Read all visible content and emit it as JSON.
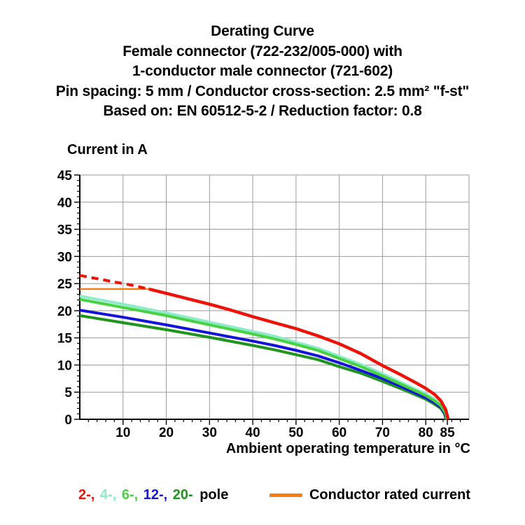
{
  "header": {
    "title": "Derating Curve",
    "subtitle_lines": [
      "Female connector (722-232/005-000) with",
      "1-conductor male connector (721-602)",
      "Pin spacing: 5 mm / Conductor cross-section: 2.5 mm² \"f-st\"",
      "Based on: EN 60512-5-2 / Reduction factor: 0.8"
    ]
  },
  "chart_data": {
    "type": "line",
    "title": "Derating Curve",
    "ylabel": "Current in A",
    "xlabel": "Ambient operating temperature in °C",
    "xlim": [
      0,
      90
    ],
    "ylim": [
      0,
      45
    ],
    "grid": true,
    "grid_color": "#9b9b9b",
    "axis_color": "#000000",
    "x_gridlines": [
      10,
      20,
      30,
      40,
      50,
      60,
      70,
      80,
      90
    ],
    "x_tick_labels": [
      10,
      20,
      30,
      40,
      50,
      60,
      70,
      80,
      85
    ],
    "x_minor_tick_step": 2,
    "y_ticks": [
      0,
      5,
      10,
      15,
      20,
      25,
      30,
      35,
      40,
      45
    ],
    "y_minor_tick_step": 1,
    "series": [
      {
        "name": "conductor-rated-current",
        "color": "#f97d12",
        "width": 2.5,
        "dash": null,
        "points": [
          [
            0,
            24
          ],
          [
            16.5,
            24
          ]
        ]
      },
      {
        "name": "20-pole",
        "color": "#1f941f",
        "width": 4,
        "dash": null,
        "points": [
          [
            0,
            19.1
          ],
          [
            10,
            17.8
          ],
          [
            20,
            16.5
          ],
          [
            30,
            15.1
          ],
          [
            40,
            13.6
          ],
          [
            45,
            12.8
          ],
          [
            50,
            11.9
          ],
          [
            55,
            11.0
          ],
          [
            60,
            9.7
          ],
          [
            65,
            8.5
          ],
          [
            70,
            7.0
          ],
          [
            75,
            5.4
          ],
          [
            78,
            4.4
          ],
          [
            80,
            3.7
          ],
          [
            82,
            2.8
          ],
          [
            83.5,
            2.0
          ],
          [
            84.3,
            1.0
          ],
          [
            84.7,
            0
          ]
        ]
      },
      {
        "name": "12-pole",
        "color": "#1414d8",
        "width": 4,
        "dash": null,
        "points": [
          [
            0,
            20.1
          ],
          [
            10,
            18.8
          ],
          [
            20,
            17.4
          ],
          [
            30,
            15.9
          ],
          [
            40,
            14.4
          ],
          [
            45,
            13.6
          ],
          [
            50,
            12.7
          ],
          [
            55,
            11.7
          ],
          [
            60,
            10.4
          ],
          [
            65,
            9.0
          ],
          [
            70,
            7.5
          ],
          [
            75,
            5.8
          ],
          [
            78,
            4.7
          ],
          [
            80,
            4.0
          ],
          [
            82,
            3.1
          ],
          [
            83.5,
            2.2
          ],
          [
            84.4,
            1.1
          ],
          [
            84.8,
            0
          ]
        ]
      },
      {
        "name": "4-pole",
        "color": "#8cecc8",
        "width": 4,
        "dash": null,
        "points": [
          [
            0,
            22.7
          ],
          [
            10,
            21.2
          ],
          [
            20,
            19.6
          ],
          [
            30,
            17.9
          ],
          [
            40,
            16.2
          ],
          [
            45,
            15.3
          ],
          [
            50,
            14.2
          ],
          [
            55,
            13.1
          ],
          [
            60,
            11.6
          ],
          [
            65,
            10.1
          ],
          [
            70,
            8.4
          ],
          [
            75,
            6.5
          ],
          [
            78,
            5.4
          ],
          [
            80,
            4.7
          ],
          [
            82,
            3.7
          ],
          [
            83.5,
            2.7
          ],
          [
            84.5,
            1.4
          ],
          [
            84.9,
            0
          ]
        ]
      },
      {
        "name": "6-pole",
        "color": "#48d141",
        "width": 4,
        "dash": null,
        "points": [
          [
            0,
            22.1
          ],
          [
            10,
            20.6
          ],
          [
            20,
            19.1
          ],
          [
            30,
            17.4
          ],
          [
            40,
            15.7
          ],
          [
            45,
            14.8
          ],
          [
            50,
            13.8
          ],
          [
            55,
            12.7
          ],
          [
            60,
            11.2
          ],
          [
            65,
            9.7
          ],
          [
            70,
            8.0
          ],
          [
            75,
            6.2
          ],
          [
            78,
            5.1
          ],
          [
            80,
            4.4
          ],
          [
            82,
            3.4
          ],
          [
            83.5,
            2.5
          ],
          [
            84.5,
            1.2
          ],
          [
            85,
            0
          ]
        ]
      },
      {
        "name": "2-pole-extrapolated",
        "color": "#ed1309",
        "width": 4,
        "dash": "10 7",
        "points": [
          [
            0,
            26.5
          ],
          [
            4,
            25.9
          ],
          [
            8,
            25.3
          ],
          [
            12,
            24.7
          ],
          [
            16,
            24
          ]
        ]
      },
      {
        "name": "2-pole",
        "color": "#ed1309",
        "width": 4.5,
        "dash": null,
        "points": [
          [
            16,
            24
          ],
          [
            20,
            23.2
          ],
          [
            25,
            22.2
          ],
          [
            30,
            21.2
          ],
          [
            35,
            20.1
          ],
          [
            40,
            18.9
          ],
          [
            45,
            17.8
          ],
          [
            50,
            16.7
          ],
          [
            55,
            15.4
          ],
          [
            60,
            13.9
          ],
          [
            65,
            12.1
          ],
          [
            70,
            9.9
          ],
          [
            74,
            8.3
          ],
          [
            78,
            6.6
          ],
          [
            80,
            5.7
          ],
          [
            82,
            4.6
          ],
          [
            83.5,
            3.4
          ],
          [
            84.6,
            1.8
          ],
          [
            85.2,
            0
          ]
        ]
      }
    ]
  },
  "legend": {
    "poles": [
      {
        "label": "2-,",
        "color": "#ed1309"
      },
      {
        "label": "4-,",
        "color": "#8cecc8"
      },
      {
        "label": "6-,",
        "color": "#48d141"
      },
      {
        "label": "12-,",
        "color": "#1414d8"
      },
      {
        "label": "20-",
        "color": "#1f941f"
      }
    ],
    "pole_suffix": "pole",
    "rated_label": "Conductor rated current",
    "rated_color": "#f97d12"
  }
}
